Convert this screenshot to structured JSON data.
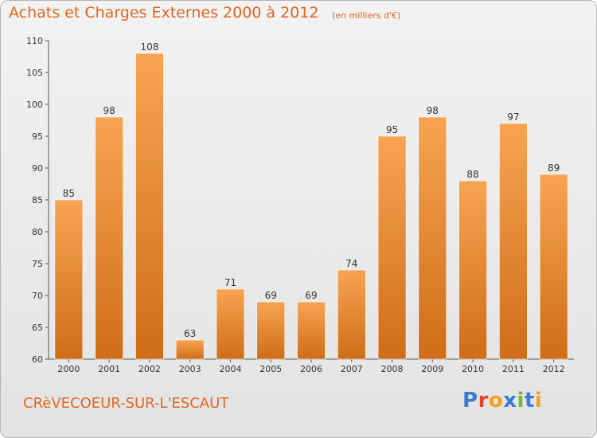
{
  "header": {
    "title": "Achats et Charges Externes 2000 à 2012",
    "subtitle": "(en milliers d'€)"
  },
  "footer": {
    "place": "CRèVECOEUR-SUR-L'ESCAUT",
    "logo": "Proxiti"
  },
  "colors": {
    "bar_top": "#f7a452",
    "bar_bottom": "#cf6d18",
    "text": "#e0661f",
    "logo_letters": [
      "#3a7bd5",
      "#e8412c",
      "#f2a21a",
      "#3a7bd5",
      "#6cbf2a",
      "#3a7bd5",
      "#f2a21a"
    ]
  },
  "chart_data": {
    "type": "bar",
    "title": "Achats et Charges Externes 2000 à 2012",
    "subtitle": "(en milliers d'€)",
    "categories": [
      "2000",
      "2001",
      "2002",
      "2003",
      "2004",
      "2005",
      "2006",
      "2007",
      "2008",
      "2009",
      "2010",
      "2011",
      "2012"
    ],
    "values": [
      85,
      98,
      108,
      63,
      71,
      69,
      69,
      74,
      95,
      98,
      88,
      97,
      89
    ],
    "ylim": [
      60,
      110
    ],
    "yticks": [
      60,
      65,
      70,
      75,
      80,
      85,
      90,
      95,
      100,
      105,
      110
    ],
    "grid": false,
    "data_labels": true
  }
}
